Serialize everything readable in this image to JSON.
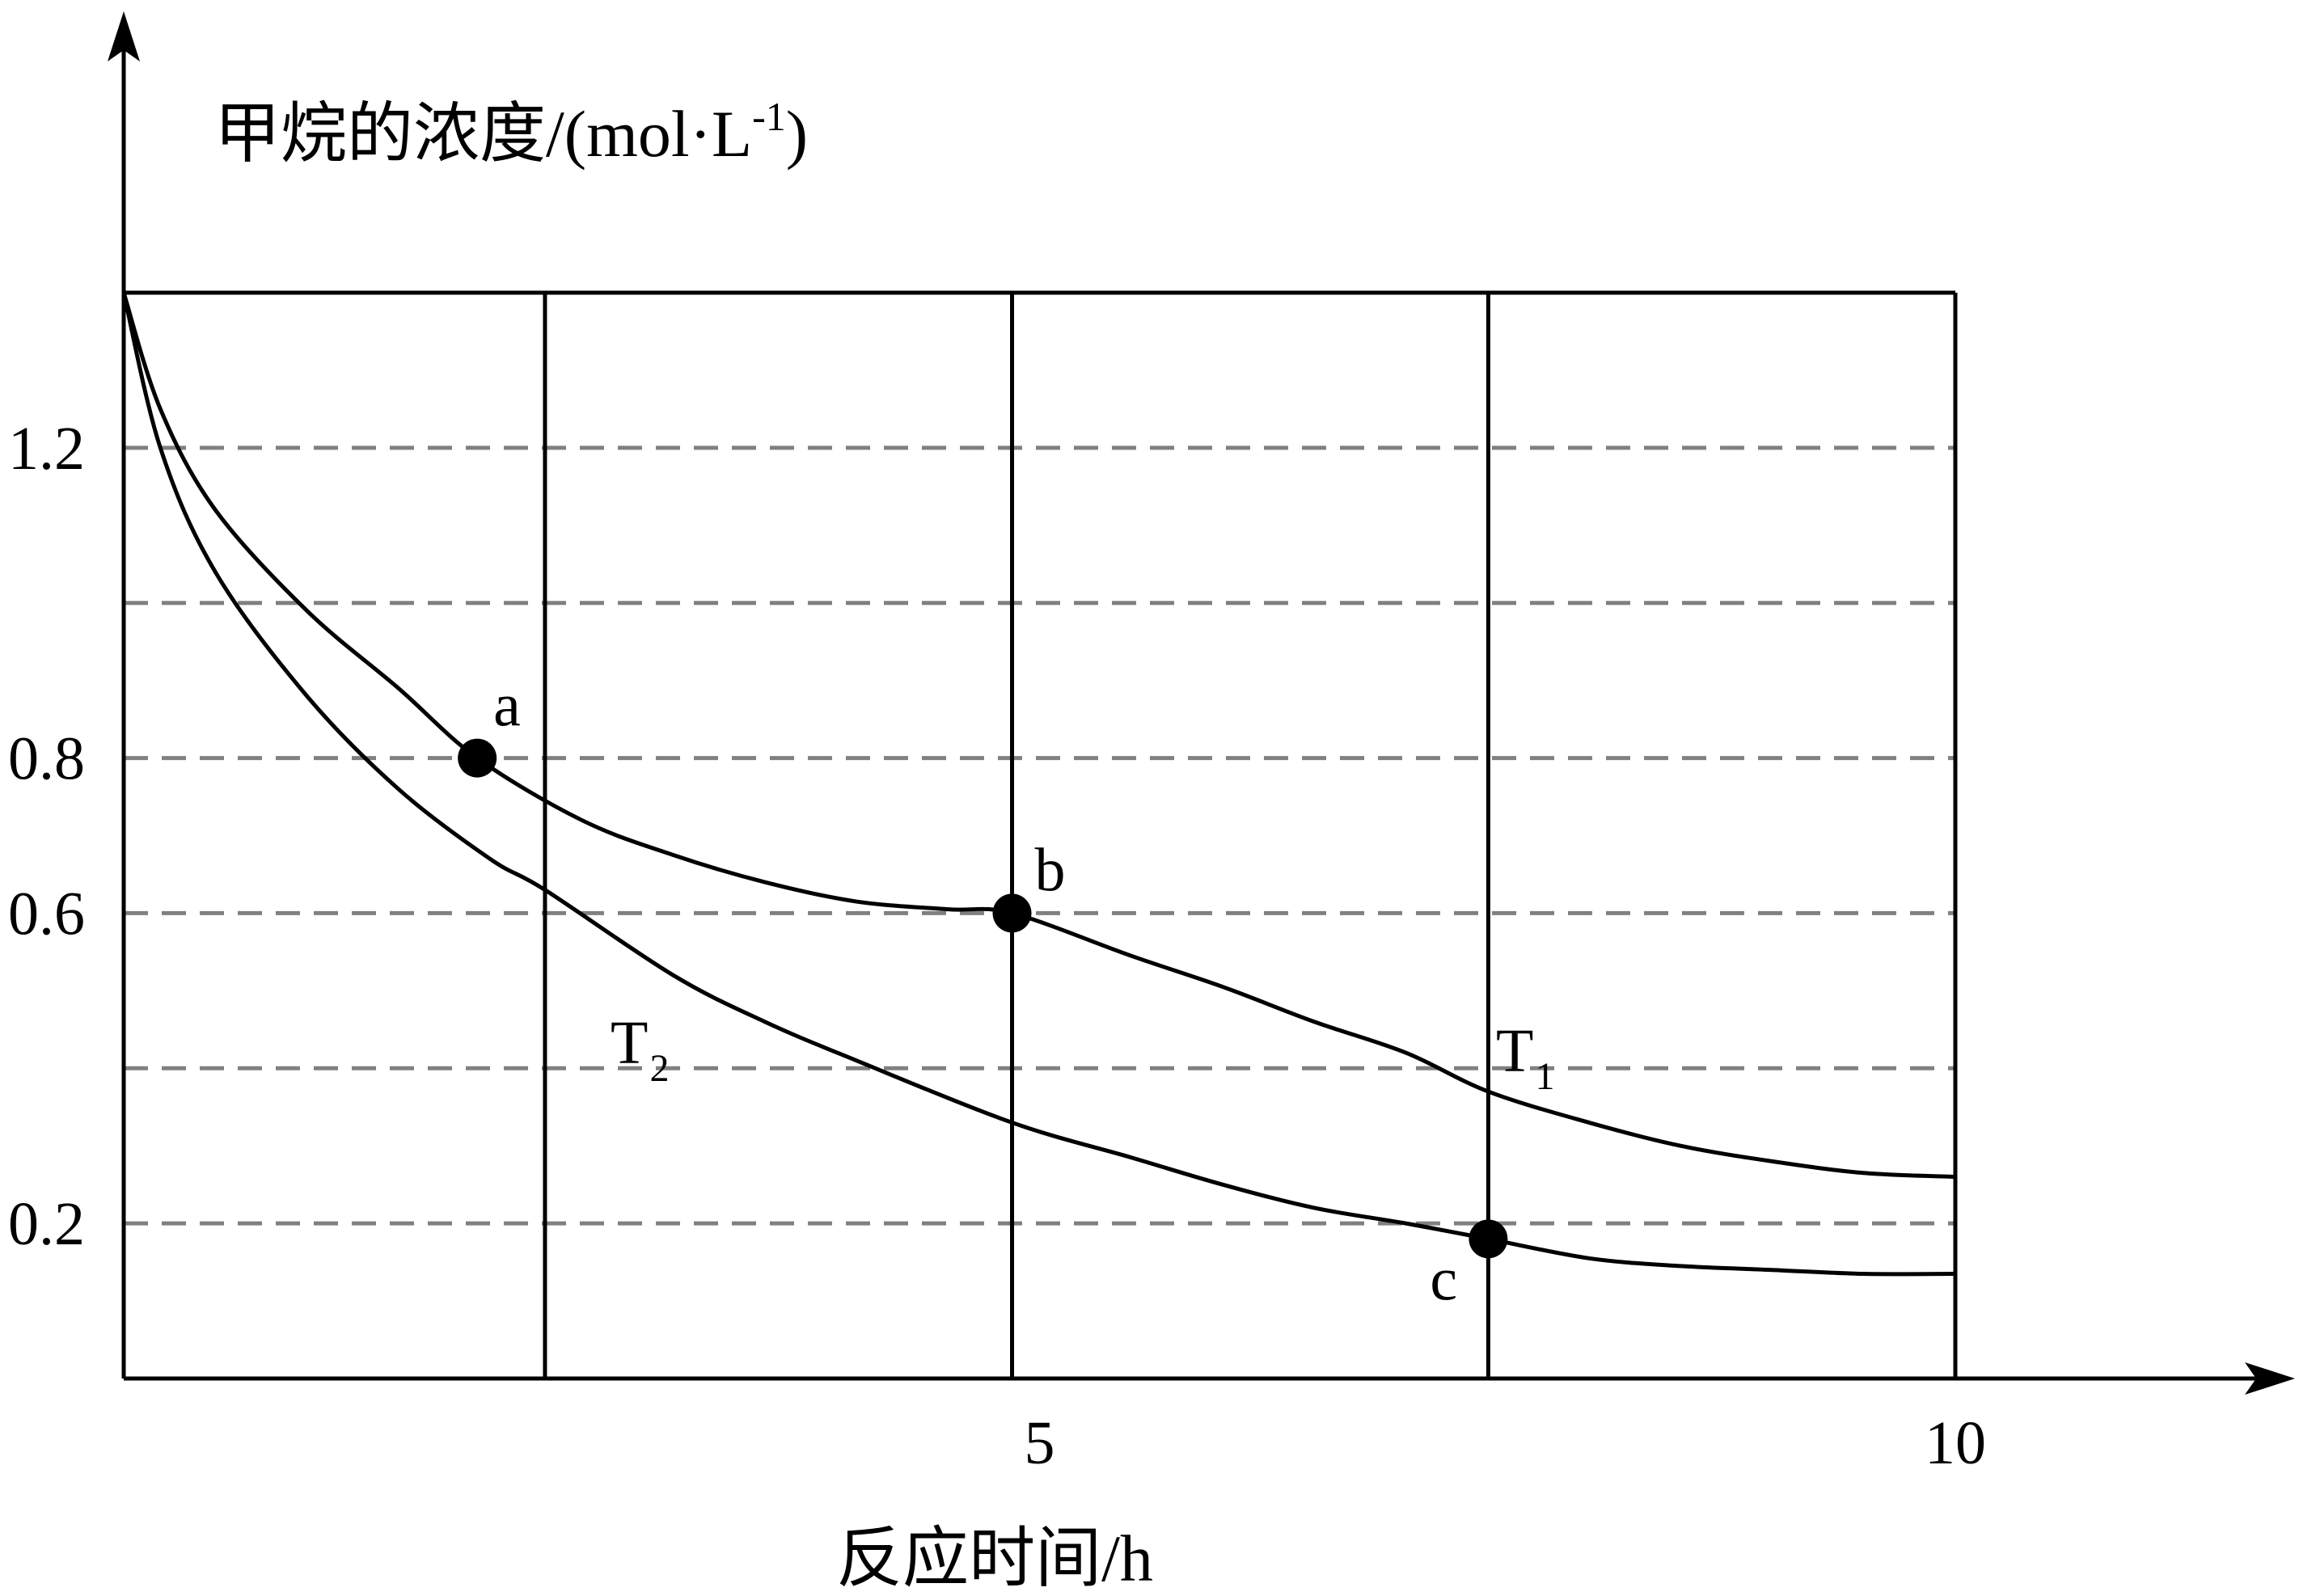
{
  "chart_data": {
    "type": "line",
    "ylabel_main": "甲烷的浓度/(mol·L",
    "ylabel_sup": "-1",
    "ylabel_close": ")",
    "xlabel": "反应时间/h",
    "xlim": [
      0,
      10
    ],
    "ylim": [
      0,
      1.4
    ],
    "x_ticks": [
      {
        "value": 5,
        "label": "5"
      },
      {
        "value": 10,
        "label": "10"
      }
    ],
    "y_ticks": [
      {
        "value": 0.2,
        "label": "0.2"
      },
      {
        "value": 0.6,
        "label": "0.6"
      },
      {
        "value": 0.8,
        "label": "0.8"
      },
      {
        "value": 1.2,
        "label": "1.2"
      }
    ],
    "h_gridlines": [
      0.2,
      0.4,
      0.6,
      0.8,
      1.0,
      1.2
    ],
    "v_lines": [
      2.3,
      4.85,
      7.45
    ],
    "series": [
      {
        "name": "T",
        "sub": "1",
        "x": [
          0,
          0.2,
          0.5,
          1.0,
          1.5,
          1.93,
          2.5,
          3.0,
          3.5,
          4.0,
          4.5,
          4.85,
          5.5,
          6.0,
          6.5,
          7.0,
          7.45,
          8.0,
          8.5,
          9.0,
          9.5,
          10.0
        ],
        "y": [
          1.4,
          1.25,
          1.12,
          0.99,
          0.89,
          0.8,
          0.72,
          0.675,
          0.64,
          0.615,
          0.605,
          0.6,
          0.545,
          0.505,
          0.46,
          0.42,
          0.37,
          0.33,
          0.3,
          0.28,
          0.265,
          0.26
        ]
      },
      {
        "name": "T",
        "sub": "2",
        "x": [
          0,
          0.2,
          0.5,
          1.0,
          1.5,
          2.0,
          2.3,
          3.0,
          3.5,
          4.0,
          4.85,
          5.5,
          6.0,
          6.5,
          7.0,
          7.45,
          8.0,
          8.5,
          9.0,
          9.5,
          10.0
        ],
        "y": [
          1.4,
          1.2,
          1.04,
          0.88,
          0.76,
          0.67,
          0.63,
          0.52,
          0.46,
          0.41,
          0.33,
          0.285,
          0.25,
          0.22,
          0.2,
          0.18,
          0.155,
          0.145,
          0.14,
          0.135,
          0.135
        ]
      }
    ],
    "points": [
      {
        "label": "a",
        "x": 1.93,
        "y": 0.8
      },
      {
        "label": "b",
        "x": 4.85,
        "y": 0.6
      },
      {
        "label": "c",
        "x": 7.45,
        "y": 0.18
      }
    ]
  }
}
